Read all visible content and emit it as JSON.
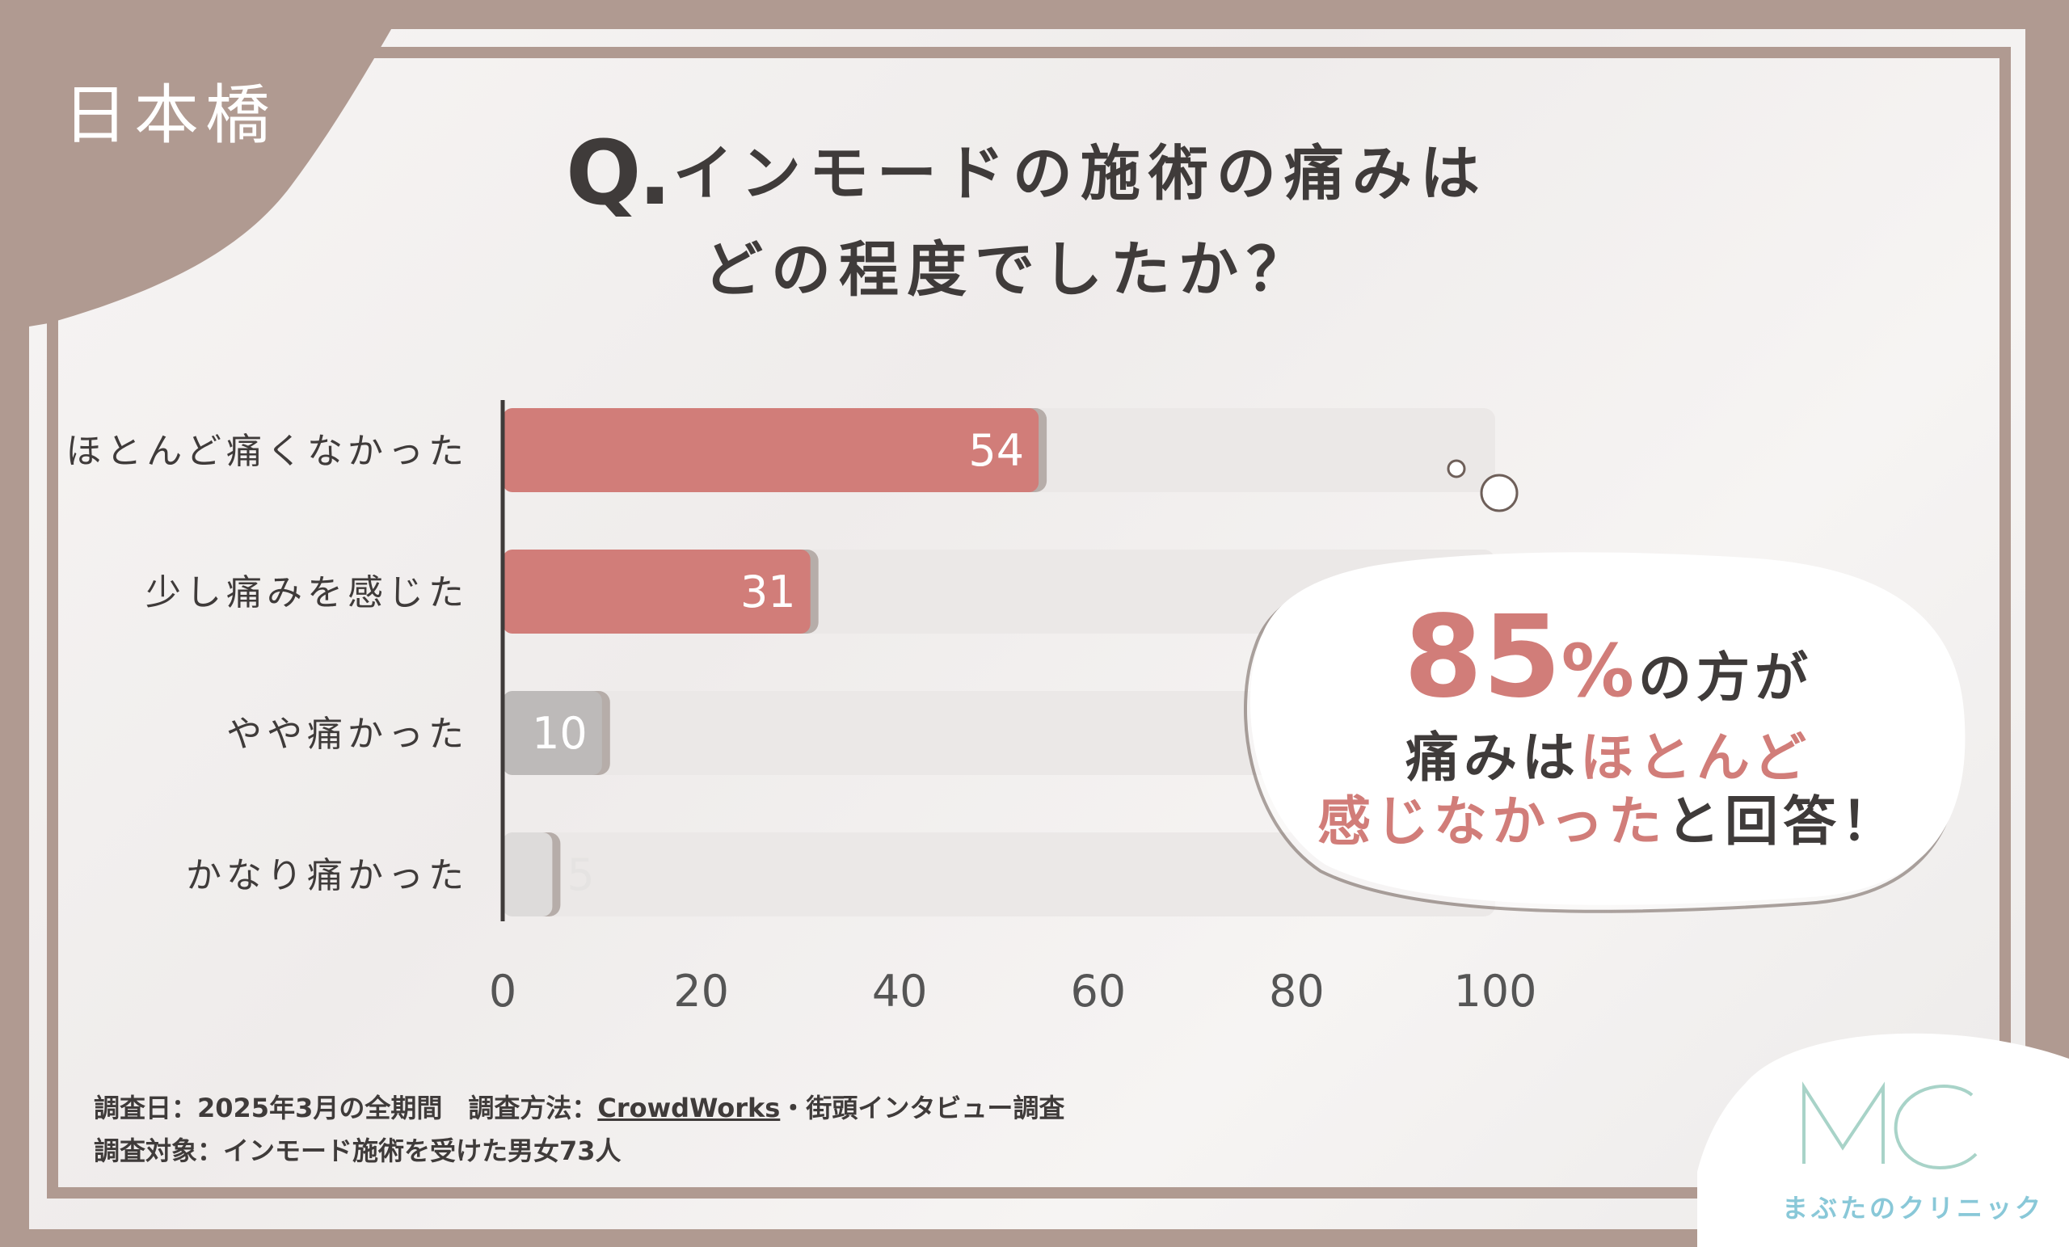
{
  "location": "日本橋",
  "title": {
    "q_mark": "Q.",
    "line1": "インモードの施術の痛みは",
    "line2": "どの程度でしたか？"
  },
  "chart_data": {
    "type": "bar",
    "orientation": "horizontal",
    "categories": [
      "ほとんど痛くなかった",
      "少し痛みを感じた",
      "やや痛かった",
      "かなり痛かった"
    ],
    "values": [
      54,
      31,
      10,
      5
    ],
    "value_labels": [
      "54",
      "31",
      "10",
      "5"
    ],
    "xlim": [
      0,
      100
    ],
    "x_ticks": [
      "0",
      "20",
      "40",
      "60",
      "80",
      "100"
    ],
    "grid": false,
    "colors": [
      "#d17d79",
      "#d17d79",
      "#bdbab9",
      "#dddbda"
    ],
    "track_color": "#ebe8e7"
  },
  "callout": {
    "percent": "85",
    "percent_sign": "%",
    "line1_suffix": "の方が",
    "line2_prefix": "痛みは",
    "line2_highlight": "ほとんど",
    "line3_highlight": "感じなかった",
    "line3_suffix": "と回答！"
  },
  "footnote": {
    "line1_prefix": "調査日：2025年3月の全期間　調査方法：",
    "line1_link": "CrowdWorks",
    "line1_suffix": "・街頭インタビュー調査",
    "line2": "調査対象：インモード施術を受けた男女73人"
  },
  "logo": {
    "mark": "MC",
    "name": "まぶたのクリニック",
    "color": "#89c8d8"
  },
  "colors": {
    "frame": "#b09a91",
    "accent": "#d17d79",
    "text": "#3f3b3a"
  }
}
